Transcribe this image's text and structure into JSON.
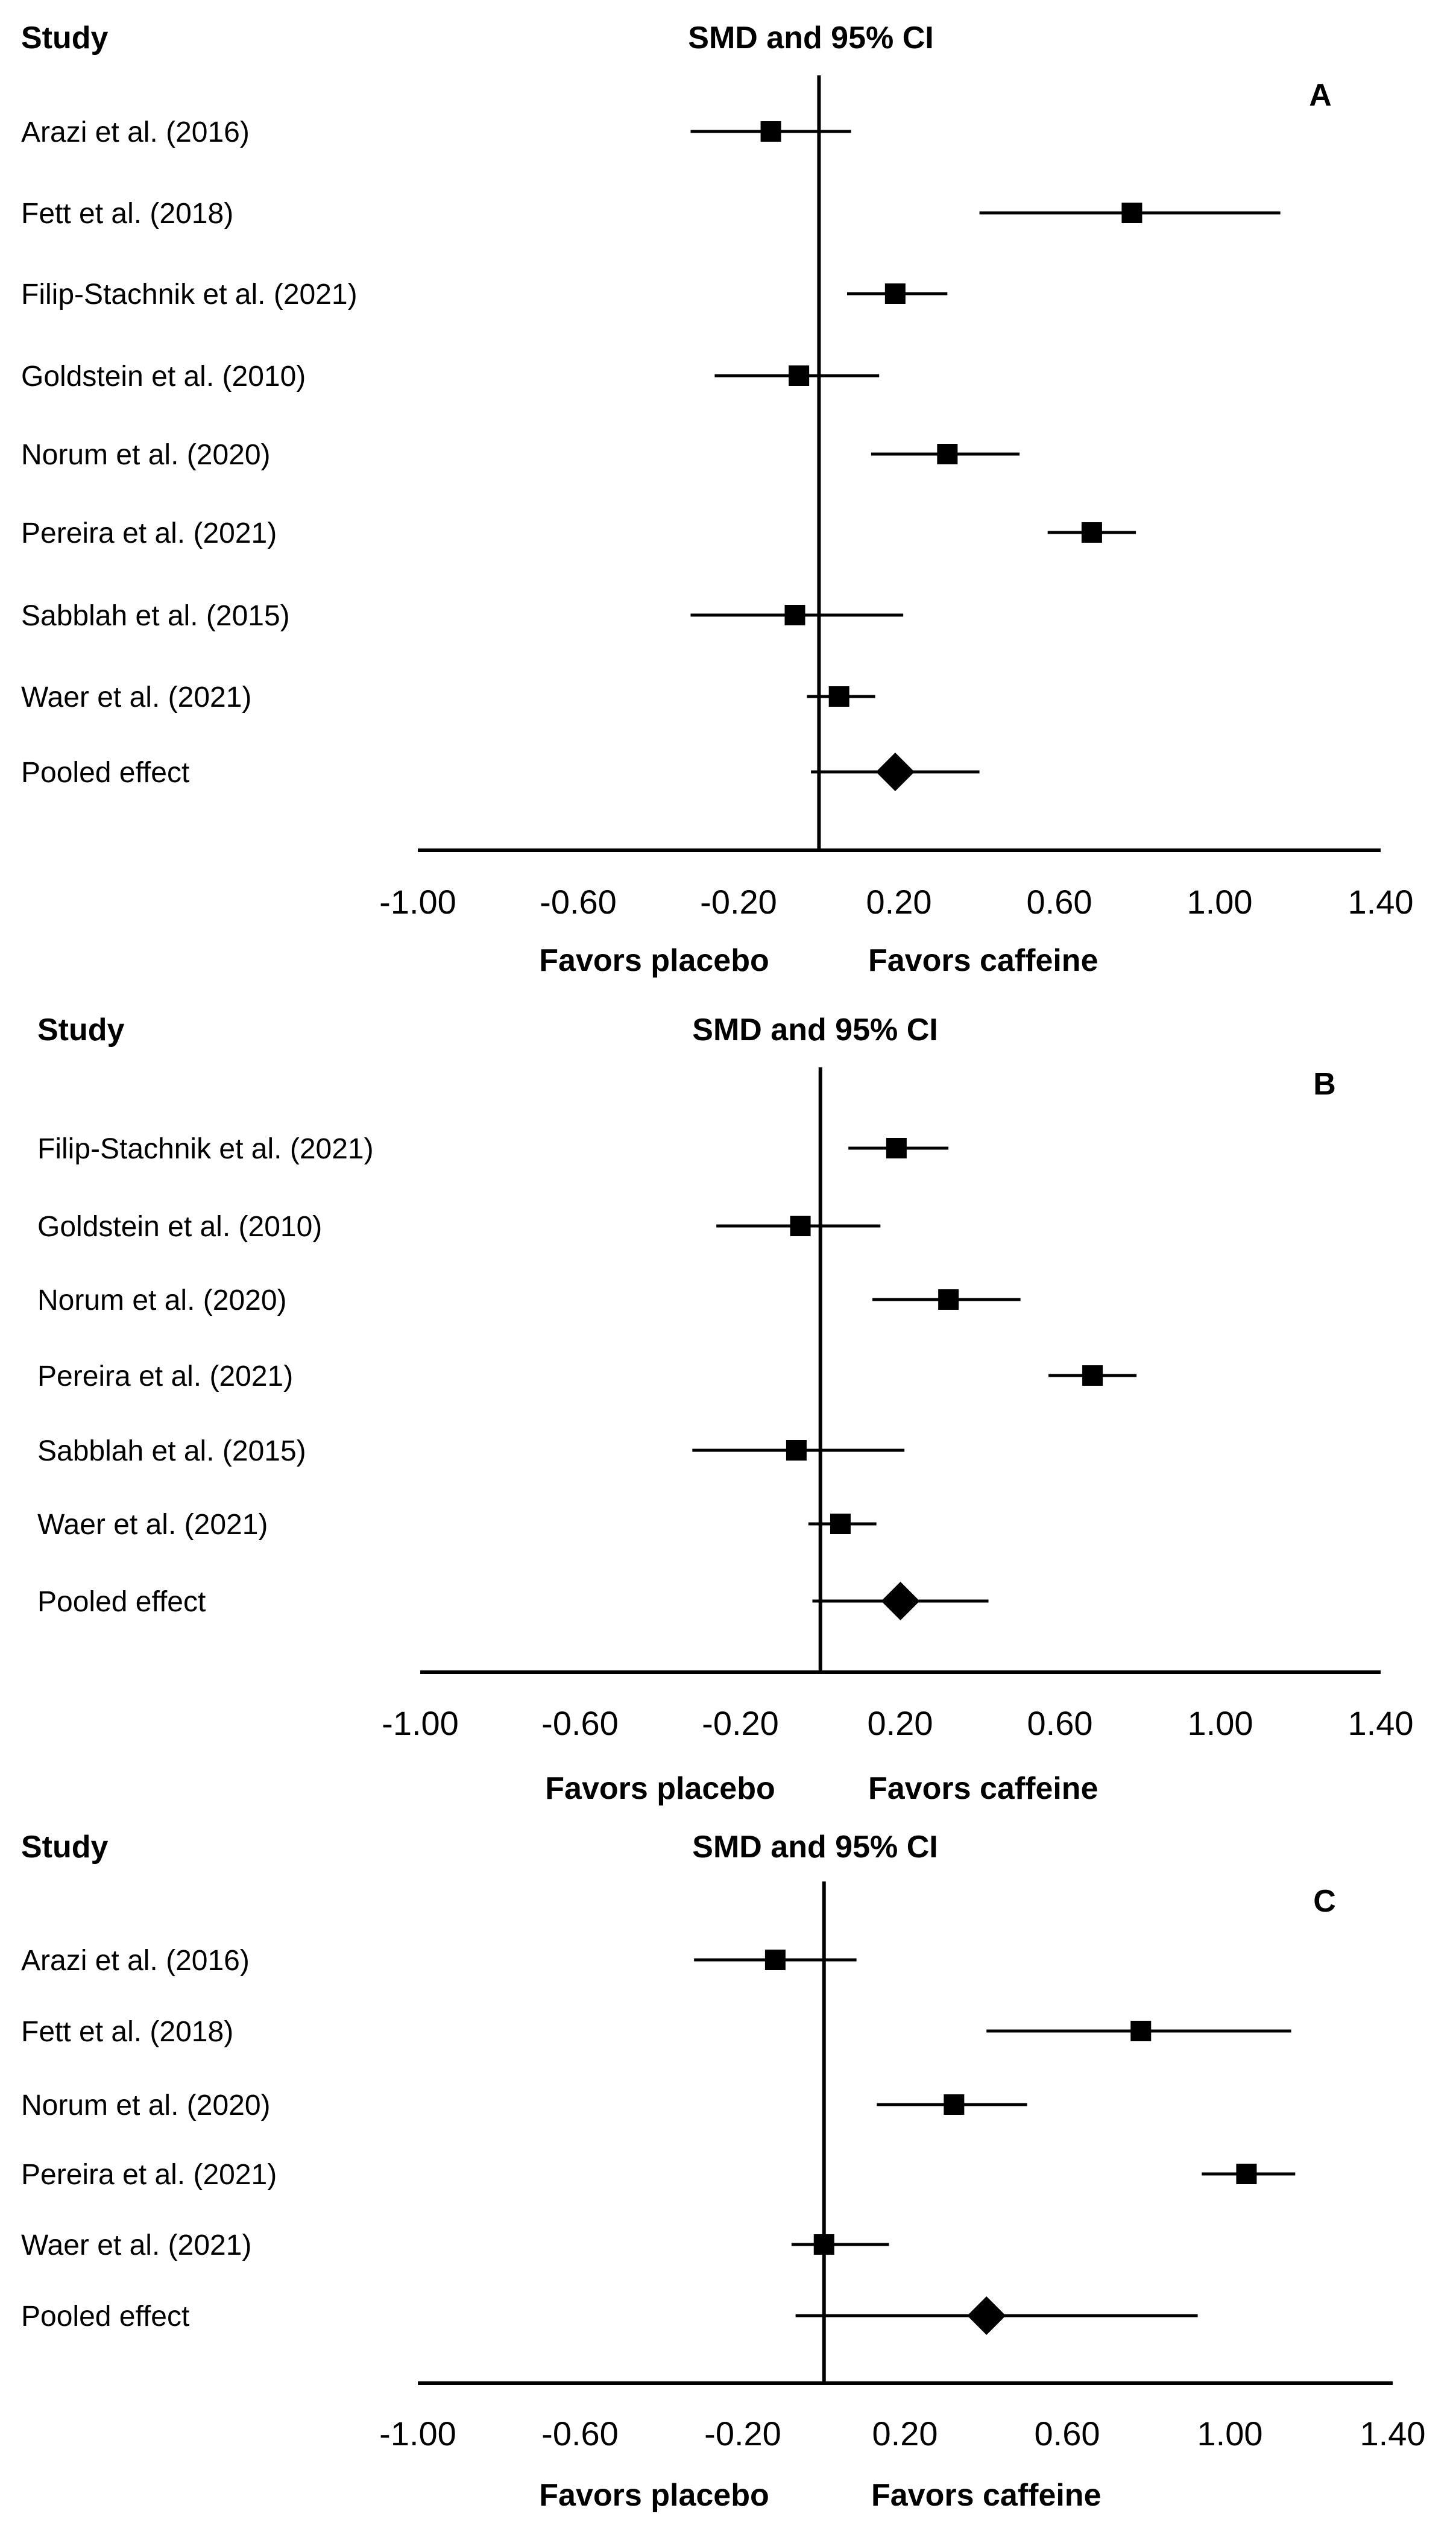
{
  "chart_data": [
    {
      "panel": "A",
      "type": "forest",
      "header_left": "Study",
      "header_center": "SMD and 95% CI",
      "x_ticks": [
        "-1.00",
        "-0.60",
        "-0.20",
        "0.20",
        "0.60",
        "1.00",
        "1.40"
      ],
      "favors_left": "Favors placebo",
      "favors_right": "Favors caffeine",
      "xlim": [
        -1.0,
        1.4
      ],
      "rows": [
        {
          "study": "Arazi et al. (2016)",
          "smd": -0.12,
          "lower": -0.32,
          "upper": 0.08
        },
        {
          "study": "Fett et al. (2018)",
          "smd": 0.78,
          "lower": 0.4,
          "upper": 1.15
        },
        {
          "study": "Filip-Stachnik et al. (2021)",
          "smd": 0.19,
          "lower": 0.07,
          "upper": 0.32
        },
        {
          "study": "Goldstein et al. (2010)",
          "smd": -0.05,
          "lower": -0.26,
          "upper": 0.15
        },
        {
          "study": "Norum et al. (2020)",
          "smd": 0.32,
          "lower": 0.13,
          "upper": 0.5
        },
        {
          "study": "Pereira et al. (2021)",
          "smd": 0.68,
          "lower": 0.57,
          "upper": 0.79
        },
        {
          "study": "Sabblah et al. (2015)",
          "smd": -0.06,
          "lower": -0.32,
          "upper": 0.21
        },
        {
          "study": "Waer et al. (2021)",
          "smd": 0.05,
          "lower": -0.03,
          "upper": 0.14
        },
        {
          "study": "Pooled effect",
          "smd": 0.19,
          "lower": -0.02,
          "upper": 0.4,
          "pooled": true
        }
      ]
    },
    {
      "panel": "B",
      "type": "forest",
      "header_left": "Study",
      "header_center": "SMD and 95% CI",
      "x_ticks": [
        "-1.00",
        "-0.60",
        "-0.20",
        "0.20",
        "0.60",
        "1.00",
        "1.40"
      ],
      "favors_left": "Favors placebo",
      "favors_right": "Favors caffeine",
      "xlim": [
        -1.0,
        1.4
      ],
      "rows": [
        {
          "study": "Filip-Stachnik et al. (2021)",
          "smd": 0.19,
          "lower": 0.07,
          "upper": 0.32
        },
        {
          "study": "Goldstein et al. (2010)",
          "smd": -0.05,
          "lower": -0.26,
          "upper": 0.15
        },
        {
          "study": "Norum et al. (2020)",
          "smd": 0.32,
          "lower": 0.13,
          "upper": 0.5
        },
        {
          "study": "Pereira et al. (2021)",
          "smd": 0.68,
          "lower": 0.57,
          "upper": 0.79
        },
        {
          "study": "Sabblah et al. (2015)",
          "smd": -0.06,
          "lower": -0.32,
          "upper": 0.21
        },
        {
          "study": "Waer et al. (2021)",
          "smd": 0.05,
          "lower": -0.03,
          "upper": 0.14
        },
        {
          "study": "Pooled effect",
          "smd": 0.2,
          "lower": -0.02,
          "upper": 0.42,
          "pooled": true
        }
      ]
    },
    {
      "panel": "C",
      "type": "forest",
      "header_left": "Study",
      "header_center": "SMD and 95% CI",
      "x_ticks": [
        "-1.00",
        "-0.60",
        "-0.20",
        "0.20",
        "0.60",
        "1.00",
        "1.40"
      ],
      "favors_left": "Favors placebo",
      "favors_right": "Favors caffeine",
      "xlim": [
        -1.0,
        1.4
      ],
      "rows": [
        {
          "study": "Arazi et al. (2016)",
          "smd": -0.12,
          "lower": -0.32,
          "upper": 0.08
        },
        {
          "study": "Fett et al. (2018)",
          "smd": 0.78,
          "lower": 0.4,
          "upper": 1.15
        },
        {
          "study": "Norum et al. (2020)",
          "smd": 0.32,
          "lower": 0.13,
          "upper": 0.5
        },
        {
          "study": "Pereira et al. (2021)",
          "smd": 1.04,
          "lower": 0.93,
          "upper": 1.16
        },
        {
          "study": "Waer et al. (2021)",
          "smd": 0.0,
          "lower": -0.08,
          "upper": 0.16
        },
        {
          "study": "Pooled effect",
          "smd": 0.4,
          "lower": -0.07,
          "upper": 0.92,
          "pooled": true
        }
      ]
    }
  ]
}
